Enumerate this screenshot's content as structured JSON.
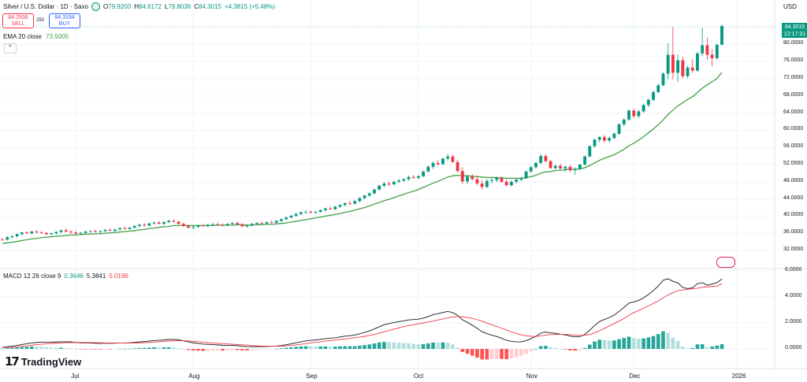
{
  "header": {
    "symbol": "Silver / U.S. Dollar · 1D · Saxo",
    "open_label": "O",
    "open": "79.9200",
    "high_label": "H",
    "high": "84.6172",
    "low_label": "L",
    "low": "79.8036",
    "close_label": "C",
    "close": "84.3015",
    "change": "+4.3815 (+5.48%)"
  },
  "trade": {
    "sell_price": "84.2936",
    "sell_label": "SELL",
    "spread": "250",
    "buy_price": "84.3194",
    "buy_label": "BUY"
  },
  "ema": {
    "label": "EMA 20 close",
    "value": "73.5005"
  },
  "macd": {
    "label": "MACD 12 26 close 9",
    "hist": "0.3646",
    "macd": "5.3841",
    "signal": "5.0196"
  },
  "axis": {
    "currency": "USD",
    "current_price": "84.3015",
    "countdown": "12:17:31",
    "price_ticks": [
      "80.0000",
      "76.0000",
      "72.0000",
      "68.0000",
      "64.0000",
      "60.0000",
      "56.0000",
      "52.0000",
      "48.0000",
      "44.0000",
      "40.0000",
      "36.0000",
      "32.0000"
    ],
    "macd_ticks": [
      "6.0000",
      "4.0000",
      "2.0000",
      "0.0000"
    ],
    "months": [
      "Jul",
      "Aug",
      "Sep",
      "Oct",
      "Nov",
      "Dec",
      "2026"
    ]
  },
  "branding": {
    "logo": "TradingView"
  },
  "colors": {
    "up": "#089981",
    "down": "#f23645",
    "ema": "#43a047",
    "macd": "#131722",
    "signal": "#f23645",
    "grid": "#f0f3fa"
  },
  "chart_data": {
    "type": "candlestick",
    "title": "Silver / U.S. Dollar · 1D · Saxo",
    "ylim": [
      30.4,
      86
    ],
    "candles": [
      [
        34.6,
        34.9,
        34.2,
        34.5
      ],
      [
        34.5,
        35.3,
        34.3,
        35.1
      ],
      [
        35.1,
        35.6,
        34.8,
        35.3
      ],
      [
        35.3,
        35.9,
        35.0,
        35.8
      ],
      [
        35.8,
        36.4,
        35.5,
        36.2
      ],
      [
        36.2,
        36.5,
        35.8,
        36.0
      ],
      [
        36.0,
        36.6,
        35.7,
        36.4
      ],
      [
        36.4,
        36.8,
        36.0,
        36.2
      ],
      [
        36.2,
        36.5,
        35.9,
        36.1
      ],
      [
        36.1,
        36.3,
        35.6,
        35.8
      ],
      [
        35.8,
        36.2,
        35.5,
        36.0
      ],
      [
        36.0,
        36.5,
        35.7,
        36.3
      ],
      [
        36.3,
        36.9,
        36.1,
        36.7
      ],
      [
        36.7,
        37.1,
        36.2,
        36.4
      ],
      [
        36.4,
        36.7,
        36.0,
        36.2
      ],
      [
        36.2,
        36.5,
        35.8,
        35.9
      ],
      [
        35.9,
        36.3,
        35.6,
        36.1
      ],
      [
        36.1,
        36.6,
        35.9,
        36.4
      ],
      [
        36.4,
        36.8,
        36.1,
        36.5
      ],
      [
        36.5,
        36.9,
        36.2,
        36.3
      ],
      [
        36.3,
        36.7,
        36.0,
        36.5
      ],
      [
        36.5,
        37.0,
        36.3,
        36.8
      ],
      [
        36.8,
        37.2,
        36.5,
        36.6
      ],
      [
        36.6,
        37.0,
        36.3,
        36.9
      ],
      [
        36.9,
        37.4,
        36.7,
        37.2
      ],
      [
        37.2,
        37.6,
        36.9,
        37.0
      ],
      [
        37.0,
        37.5,
        36.8,
        37.3
      ],
      [
        37.3,
        37.9,
        37.1,
        37.7
      ],
      [
        37.7,
        38.3,
        37.4,
        38.0
      ],
      [
        38.0,
        38.4,
        37.6,
        37.8
      ],
      [
        37.8,
        38.5,
        37.6,
        38.3
      ],
      [
        38.3,
        38.8,
        38.0,
        38.5
      ],
      [
        38.5,
        38.9,
        38.1,
        38.2
      ],
      [
        38.2,
        38.8,
        37.9,
        38.6
      ],
      [
        38.6,
        39.2,
        38.4,
        38.9
      ],
      [
        38.9,
        39.3,
        38.5,
        38.7
      ],
      [
        38.7,
        39.0,
        38.1,
        38.2
      ],
      [
        38.2,
        38.5,
        37.5,
        37.7
      ],
      [
        37.7,
        38.0,
        37.1,
        37.3
      ],
      [
        37.3,
        37.8,
        36.9,
        37.5
      ],
      [
        37.5,
        38.0,
        37.2,
        37.8
      ],
      [
        37.8,
        38.1,
        37.5,
        37.7
      ],
      [
        37.7,
        38.2,
        37.4,
        38.0
      ],
      [
        38.0,
        38.4,
        37.7,
        38.1
      ],
      [
        38.1,
        38.5,
        37.8,
        38.0
      ],
      [
        38.0,
        38.3,
        37.6,
        37.9
      ],
      [
        37.9,
        38.3,
        37.6,
        38.2
      ],
      [
        38.2,
        38.6,
        37.9,
        38.4
      ],
      [
        38.4,
        38.7,
        38.0,
        38.1
      ],
      [
        38.1,
        38.3,
        37.5,
        37.6
      ],
      [
        37.6,
        38.1,
        37.3,
        37.9
      ],
      [
        37.9,
        38.4,
        37.6,
        38.2
      ],
      [
        38.2,
        38.6,
        37.9,
        38.4
      ],
      [
        38.4,
        38.7,
        38.1,
        38.3
      ],
      [
        38.3,
        38.8,
        38.0,
        38.6
      ],
      [
        38.6,
        39.0,
        38.3,
        38.5
      ],
      [
        38.5,
        39.1,
        38.3,
        38.9
      ],
      [
        38.9,
        39.5,
        38.6,
        39.3
      ],
      [
        39.3,
        39.9,
        39.0,
        39.7
      ],
      [
        39.7,
        40.3,
        39.4,
        40.1
      ],
      [
        40.1,
        40.8,
        39.8,
        40.5
      ],
      [
        40.5,
        41.1,
        40.2,
        40.9
      ],
      [
        40.9,
        41.4,
        40.5,
        41.0
      ],
      [
        41.0,
        41.3,
        40.6,
        40.8
      ],
      [
        40.8,
        41.2,
        40.5,
        41.0
      ],
      [
        41.0,
        41.6,
        40.8,
        41.4
      ],
      [
        41.4,
        42.0,
        41.1,
        41.8
      ],
      [
        41.8,
        42.3,
        41.4,
        41.6
      ],
      [
        41.6,
        42.4,
        41.4,
        42.2
      ],
      [
        42.2,
        42.8,
        41.9,
        42.6
      ],
      [
        42.6,
        43.2,
        42.3,
        43.0
      ],
      [
        43.0,
        43.6,
        42.6,
        42.9
      ],
      [
        42.9,
        43.7,
        42.7,
        43.5
      ],
      [
        43.5,
        44.4,
        43.2,
        44.2
      ],
      [
        44.2,
        45.0,
        43.9,
        44.8
      ],
      [
        44.8,
        45.6,
        44.5,
        45.3
      ],
      [
        45.3,
        46.4,
        45.1,
        46.2
      ],
      [
        46.2,
        47.3,
        45.9,
        47.1
      ],
      [
        47.1,
        48.0,
        46.7,
        47.6
      ],
      [
        47.6,
        48.1,
        47.0,
        47.4
      ],
      [
        47.4,
        48.2,
        47.2,
        48.0
      ],
      [
        48.0,
        48.7,
        47.7,
        48.3
      ],
      [
        48.3,
        48.9,
        47.9,
        48.6
      ],
      [
        48.6,
        49.4,
        48.3,
        49.1
      ],
      [
        49.1,
        49.6,
        48.7,
        48.9
      ],
      [
        48.9,
        49.5,
        48.6,
        49.3
      ],
      [
        49.3,
        50.6,
        49.1,
        50.4
      ],
      [
        50.4,
        51.8,
        50.2,
        51.5
      ],
      [
        51.5,
        52.7,
        51.0,
        52.4
      ],
      [
        52.4,
        53.0,
        51.8,
        52.1
      ],
      [
        52.1,
        53.6,
        51.9,
        53.4
      ],
      [
        53.4,
        54.5,
        52.9,
        53.9
      ],
      [
        53.9,
        54.3,
        52.4,
        52.6
      ],
      [
        52.6,
        53.2,
        50.1,
        50.5
      ],
      [
        50.5,
        51.4,
        47.5,
        48.1
      ],
      [
        48.1,
        49.6,
        47.4,
        49.2
      ],
      [
        49.2,
        49.8,
        48.3,
        48.6
      ],
      [
        48.6,
        49.4,
        47.2,
        47.6
      ],
      [
        47.6,
        48.3,
        46.2,
        46.8
      ],
      [
        46.8,
        48.6,
        46.5,
        48.2
      ],
      [
        48.2,
        49.1,
        47.6,
        48.4
      ],
      [
        48.4,
        49.2,
        47.9,
        48.9
      ],
      [
        48.9,
        49.3,
        47.8,
        48.0
      ],
      [
        48.0,
        48.5,
        46.9,
        47.2
      ],
      [
        47.2,
        48.3,
        46.9,
        48.0
      ],
      [
        48.0,
        48.7,
        47.6,
        48.5
      ],
      [
        48.5,
        49.2,
        48.1,
        48.8
      ],
      [
        48.8,
        50.6,
        48.6,
        50.4
      ],
      [
        50.4,
        51.7,
        50.1,
        51.4
      ],
      [
        51.4,
        52.6,
        51.0,
        52.4
      ],
      [
        52.4,
        54.4,
        52.1,
        54.0
      ],
      [
        54.0,
        54.5,
        52.5,
        52.8
      ],
      [
        52.8,
        53.1,
        51.0,
        51.2
      ],
      [
        51.2,
        52.1,
        50.8,
        51.7
      ],
      [
        51.7,
        52.3,
        50.9,
        51.1
      ],
      [
        51.1,
        51.8,
        50.3,
        51.5
      ],
      [
        51.5,
        51.9,
        50.2,
        50.7
      ],
      [
        50.7,
        51.4,
        49.6,
        51.0
      ],
      [
        51.0,
        52.2,
        50.8,
        52.0
      ],
      [
        52.0,
        54.1,
        51.8,
        53.9
      ],
      [
        53.9,
        56.5,
        53.7,
        56.3
      ],
      [
        56.3,
        58.1,
        56.0,
        57.8
      ],
      [
        57.8,
        58.7,
        57.2,
        58.4
      ],
      [
        58.4,
        58.9,
        57.1,
        57.6
      ],
      [
        57.6,
        58.6,
        57.0,
        58.2
      ],
      [
        58.2,
        59.5,
        57.9,
        59.2
      ],
      [
        59.2,
        61.6,
        58.9,
        61.4
      ],
      [
        61.4,
        62.8,
        60.9,
        62.5
      ],
      [
        62.5,
        64.9,
        62.2,
        64.6
      ],
      [
        64.6,
        65.1,
        62.8,
        63.3
      ],
      [
        63.3,
        64.7,
        62.9,
        64.4
      ],
      [
        64.4,
        66.2,
        64.1,
        65.9
      ],
      [
        65.9,
        67.4,
        65.4,
        67.1
      ],
      [
        67.1,
        69.3,
        66.8,
        68.9
      ],
      [
        68.9,
        70.9,
        68.6,
        70.5
      ],
      [
        70.5,
        73.6,
        70.2,
        73.2
      ],
      [
        73.2,
        80.3,
        71.9,
        77.6
      ],
      [
        77.6,
        84.1,
        71.8,
        73.4
      ],
      [
        73.4,
        77.7,
        71.3,
        76.3
      ],
      [
        76.3,
        77.2,
        72.1,
        72.6
      ],
      [
        72.6,
        75.1,
        72.2,
        74.6
      ],
      [
        74.6,
        76.6,
        73.4,
        73.9
      ],
      [
        73.9,
        78.3,
        73.6,
        77.9
      ],
      [
        77.9,
        83.8,
        77.2,
        79.8
      ],
      [
        79.8,
        81.6,
        76.4,
        77.6
      ],
      [
        77.6,
        78.9,
        74.9,
        76.8
      ],
      [
        76.8,
        80.2,
        76.5,
        79.92
      ],
      [
        79.92,
        84.6172,
        79.8036,
        84.3015
      ]
    ],
    "ema20": [
      33.6,
      33.8,
      33.9,
      34.1,
      34.3,
      34.5,
      34.7,
      34.8,
      35.0,
      35.1,
      35.2,
      35.3,
      35.4,
      35.5,
      35.6,
      35.6,
      35.7,
      35.8,
      35.8,
      35.9,
      35.9,
      36.0,
      36.1,
      36.2,
      36.3,
      36.4,
      36.5,
      36.6,
      36.8,
      36.9,
      37.1,
      37.2,
      37.4,
      37.5,
      37.6,
      37.8,
      37.8,
      37.8,
      37.8,
      37.8,
      37.8,
      37.8,
      37.8,
      37.8,
      37.9,
      37.9,
      37.9,
      37.9,
      38.0,
      38.0,
      37.9,
      37.9,
      38.0,
      38.0,
      38.1,
      38.1,
      38.2,
      38.3,
      38.4,
      38.6,
      38.8,
      39.0,
      39.2,
      39.4,
      39.6,
      39.8,
      40.0,
      40.2,
      40.4,
      40.6,
      40.9,
      41.1,
      41.4,
      41.7,
      42.0,
      42.4,
      42.8,
      43.2,
      43.6,
      43.9,
      44.3,
      44.7,
      45.1,
      45.5,
      45.8,
      46.2,
      46.7,
      47.2,
      47.7,
      48.1,
      48.6,
      49.1,
      49.4,
      49.5,
      49.4,
      49.4,
      49.3,
      49.2,
      49.1,
      49.0,
      49.0,
      49.0,
      48.9,
      48.8,
      48.8,
      48.8,
      48.8,
      49.0,
      49.2,
      49.5,
      50.0,
      50.3,
      50.4,
      50.6,
      50.7,
      50.8,
      50.9,
      50.9,
      51.0,
      51.3,
      51.8,
      52.4,
      53.0,
      53.5,
      53.9,
      54.3,
      54.9,
      55.6,
      56.4,
      57.0,
      57.7,
      58.5,
      59.4,
      60.3,
      61.3,
      62.4,
      63.7,
      64.7,
      65.7,
      66.4,
      67.2,
      67.8,
      68.8,
      69.8,
      70.6,
      71.3,
      72.1,
      73.5
    ],
    "macd": [
      0.12,
      0.16,
      0.21,
      0.27,
      0.34,
      0.4,
      0.46,
      0.5,
      0.52,
      0.52,
      0.52,
      0.53,
      0.55,
      0.55,
      0.54,
      0.5,
      0.47,
      0.46,
      0.45,
      0.44,
      0.43,
      0.44,
      0.44,
      0.44,
      0.46,
      0.46,
      0.47,
      0.5,
      0.54,
      0.56,
      0.6,
      0.64,
      0.66,
      0.69,
      0.72,
      0.73,
      0.7,
      0.63,
      0.54,
      0.47,
      0.42,
      0.37,
      0.35,
      0.33,
      0.31,
      0.28,
      0.27,
      0.27,
      0.25,
      0.2,
      0.18,
      0.17,
      0.18,
      0.18,
      0.19,
      0.2,
      0.22,
      0.26,
      0.32,
      0.39,
      0.47,
      0.55,
      0.62,
      0.66,
      0.69,
      0.74,
      0.79,
      0.82,
      0.86,
      0.92,
      0.98,
      1.02,
      1.07,
      1.16,
      1.27,
      1.39,
      1.54,
      1.71,
      1.86,
      1.95,
      2.03,
      2.1,
      2.16,
      2.23,
      2.26,
      2.29,
      2.37,
      2.49,
      2.64,
      2.71,
      2.81,
      2.88,
      2.8,
      2.58,
      2.24,
      2.05,
      1.83,
      1.58,
      1.32,
      1.18,
      1.06,
      0.96,
      0.82,
      0.66,
      0.58,
      0.55,
      0.54,
      0.64,
      0.79,
      0.96,
      1.22,
      1.3,
      1.23,
      1.2,
      1.13,
      1.08,
      0.99,
      0.93,
      0.95,
      1.12,
      1.44,
      1.8,
      2.11,
      2.27,
      2.41,
      2.6,
      2.89,
      3.19,
      3.53,
      3.62,
      3.73,
      3.93,
      4.19,
      4.49,
      4.84,
      5.29,
      5.4,
      5.2,
      5.09,
      4.73,
      4.64,
      4.7,
      5.02,
      5.1,
      4.9,
      4.99,
      5.1,
      5.38
    ],
    "signal": [
      0.1,
      0.11,
      0.13,
      0.16,
      0.2,
      0.24,
      0.28,
      0.33,
      0.36,
      0.39,
      0.42,
      0.44,
      0.46,
      0.48,
      0.49,
      0.5,
      0.5,
      0.49,
      0.48,
      0.48,
      0.47,
      0.46,
      0.46,
      0.45,
      0.45,
      0.45,
      0.45,
      0.46,
      0.47,
      0.48,
      0.5,
      0.52,
      0.55,
      0.57,
      0.6,
      0.62,
      0.64,
      0.63,
      0.62,
      0.59,
      0.55,
      0.52,
      0.49,
      0.46,
      0.43,
      0.4,
      0.38,
      0.36,
      0.34,
      0.31,
      0.29,
      0.26,
      0.24,
      0.22,
      0.21,
      0.21,
      0.21,
      0.22,
      0.24,
      0.27,
      0.31,
      0.36,
      0.41,
      0.46,
      0.51,
      0.55,
      0.6,
      0.64,
      0.68,
      0.72,
      0.77,
      0.81,
      0.86,
      0.91,
      0.97,
      1.04,
      1.12,
      1.21,
      1.32,
      1.42,
      1.52,
      1.62,
      1.71,
      1.8,
      1.87,
      1.93,
      2.0,
      2.07,
      2.15,
      2.23,
      2.31,
      2.4,
      2.46,
      2.49,
      2.47,
      2.42,
      2.35,
      2.25,
      2.13,
      1.99,
      1.86,
      1.73,
      1.59,
      1.45,
      1.31,
      1.19,
      1.08,
      1.01,
      0.97,
      0.96,
      1.01,
      1.07,
      1.1,
      1.12,
      1.12,
      1.12,
      1.1,
      1.06,
      1.04,
      1.05,
      1.11,
      1.23,
      1.4,
      1.58,
      1.77,
      1.95,
      2.14,
      2.35,
      2.59,
      2.79,
      2.95,
      3.12,
      3.31,
      3.5,
      3.7,
      3.93,
      4.15,
      4.33,
      4.47,
      4.54,
      4.59,
      4.63,
      4.67,
      4.74,
      4.78,
      4.81,
      4.84,
      5.02
    ],
    "hist": [
      0.02,
      0.05,
      0.08,
      0.11,
      0.14,
      0.16,
      0.18,
      0.17,
      0.16,
      0.13,
      0.1,
      0.09,
      0.09,
      0.07,
      0.05,
      0.0,
      -0.03,
      -0.03,
      -0.03,
      -0.04,
      -0.04,
      -0.02,
      -0.02,
      -0.01,
      0.01,
      0.01,
      0.02,
      0.04,
      0.07,
      0.08,
      0.1,
      0.12,
      0.11,
      0.12,
      0.12,
      0.11,
      0.06,
      0.0,
      -0.08,
      -0.12,
      -0.13,
      -0.15,
      -0.14,
      -0.13,
      -0.12,
      -0.12,
      -0.11,
      -0.09,
      -0.09,
      -0.11,
      -0.11,
      -0.09,
      -0.06,
      -0.04,
      -0.02,
      -0.01,
      0.01,
      0.04,
      0.08,
      0.12,
      0.16,
      0.19,
      0.21,
      0.2,
      0.18,
      0.19,
      0.19,
      0.18,
      0.18,
      0.2,
      0.21,
      0.21,
      0.21,
      0.25,
      0.3,
      0.35,
      0.42,
      0.5,
      0.54,
      0.53,
      0.51,
      0.48,
      0.45,
      0.43,
      0.39,
      0.36,
      0.37,
      0.42,
      0.49,
      0.48,
      0.5,
      0.48,
      0.34,
      0.09,
      -0.23,
      -0.37,
      -0.52,
      -0.67,
      -0.81,
      -0.81,
      -0.8,
      -0.77,
      -0.77,
      -0.79,
      -0.73,
      -0.64,
      -0.54,
      -0.37,
      -0.18,
      0.0,
      0.21,
      0.23,
      0.13,
      0.08,
      0.01,
      -0.04,
      -0.11,
      -0.13,
      -0.09,
      0.07,
      0.33,
      0.57,
      0.71,
      0.69,
      0.64,
      0.65,
      0.75,
      0.84,
      0.94,
      0.83,
      0.78,
      0.81,
      0.88,
      0.99,
      1.14,
      1.36,
      1.25,
      0.87,
      0.62,
      0.19,
      0.05,
      0.07,
      0.35,
      0.36,
      0.12,
      0.18,
      0.26,
      0.36
    ]
  }
}
